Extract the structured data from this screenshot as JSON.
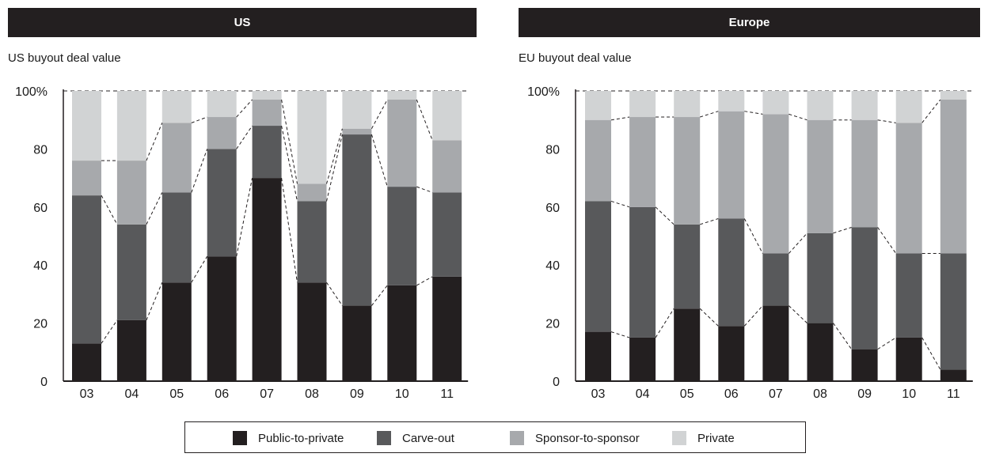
{
  "panels": [
    {
      "id": "us",
      "header": "US",
      "subtitle": "US buyout deal value"
    },
    {
      "id": "eu",
      "header": "Europe",
      "subtitle": "EU buyout deal value"
    }
  ],
  "legend": [
    {
      "label": "Public-to-private",
      "color": "#231f20"
    },
    {
      "label": "Carve-out",
      "color": "#58595b"
    },
    {
      "label": "Sponsor-to-sponsor",
      "color": "#a7a9ac"
    },
    {
      "label": "Private",
      "color": "#d1d3d4"
    }
  ],
  "chart_data": [
    {
      "type": "bar",
      "stacked": true,
      "title": "US buyout deal value",
      "categories": [
        "03",
        "04",
        "05",
        "06",
        "07",
        "08",
        "09",
        "10",
        "11"
      ],
      "ylim": [
        0,
        100
      ],
      "yticks": [
        "0",
        "20",
        "40",
        "60",
        "80",
        "100%"
      ],
      "series": [
        {
          "name": "Public-to-private",
          "values": [
            13,
            21,
            34,
            43,
            70,
            34,
            26,
            33,
            36
          ]
        },
        {
          "name": "Carve-out",
          "values": [
            51,
            33,
            31,
            37,
            18,
            28,
            59,
            34,
            29
          ]
        },
        {
          "name": "Sponsor-to-sponsor",
          "values": [
            12,
            22,
            24,
            11,
            9,
            6,
            2,
            30,
            18
          ]
        },
        {
          "name": "Private",
          "values": [
            24,
            24,
            11,
            9,
            3,
            32,
            13,
            3,
            17
          ]
        }
      ]
    },
    {
      "type": "bar",
      "stacked": true,
      "title": "EU buyout deal value",
      "categories": [
        "03",
        "04",
        "05",
        "06",
        "07",
        "08",
        "09",
        "10",
        "11"
      ],
      "ylim": [
        0,
        100
      ],
      "yticks": [
        "0",
        "20",
        "40",
        "60",
        "80",
        "100%"
      ],
      "series": [
        {
          "name": "Public-to-private",
          "values": [
            17,
            15,
            25,
            19,
            26,
            20,
            11,
            15,
            4
          ]
        },
        {
          "name": "Carve-out",
          "values": [
            45,
            45,
            29,
            37,
            18,
            31,
            42,
            29,
            40
          ]
        },
        {
          "name": "Sponsor-to-sponsor",
          "values": [
            28,
            31,
            37,
            37,
            48,
            39,
            37,
            45,
            53
          ]
        },
        {
          "name": "Private",
          "values": [
            10,
            9,
            9,
            7,
            8,
            10,
            10,
            11,
            3
          ]
        }
      ]
    }
  ]
}
